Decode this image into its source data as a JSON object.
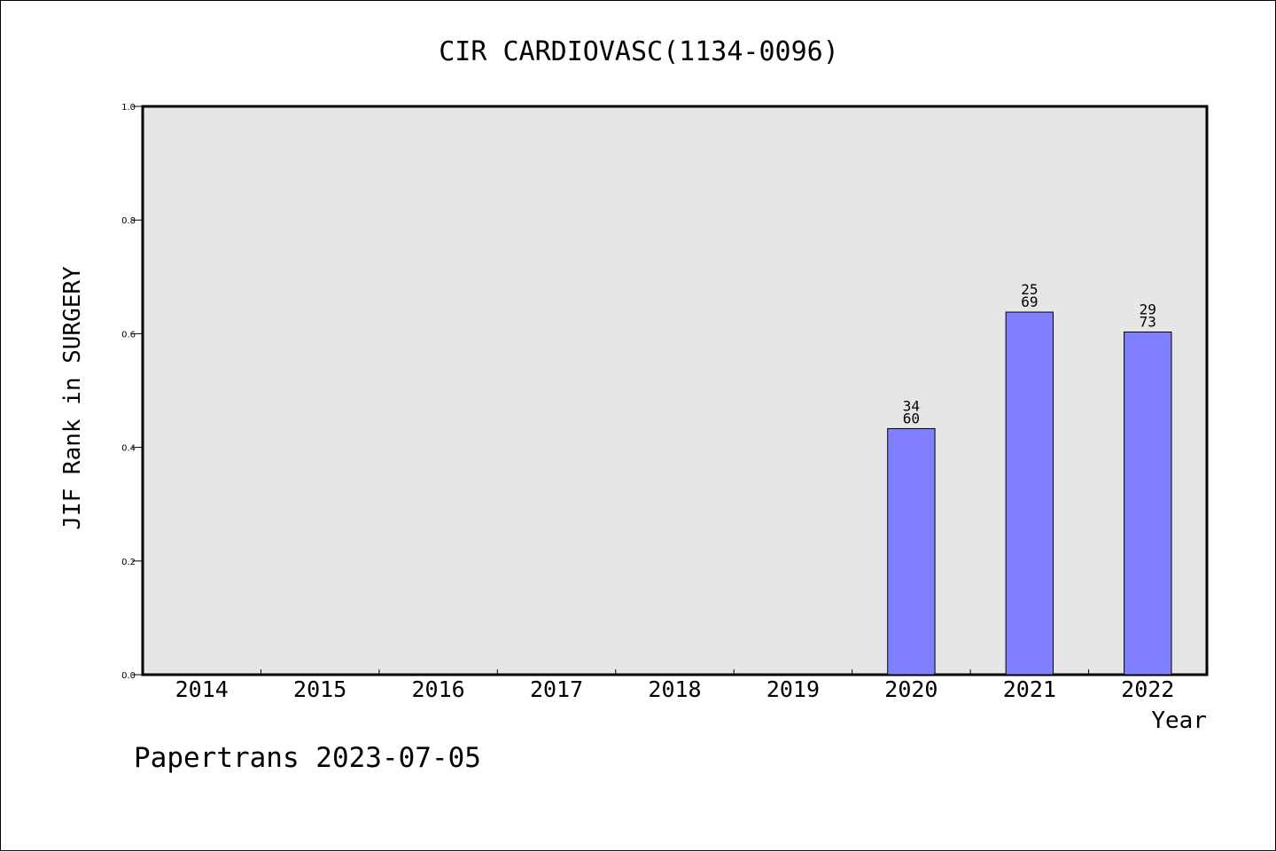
{
  "chart_data": {
    "type": "bar",
    "title": "CIR CARDIOVASC(1134-0096)",
    "xlabel": "Year",
    "ylabel": "JIF Rank in SURGERY",
    "categories": [
      "2014",
      "2015",
      "2016",
      "2017",
      "2018",
      "2019",
      "2020",
      "2021",
      "2022"
    ],
    "values": [
      null,
      null,
      null,
      null,
      null,
      null,
      0.433,
      0.638,
      0.603
    ],
    "bar_labels": [
      null,
      null,
      null,
      null,
      null,
      null,
      {
        "top": "34",
        "bottom": "60"
      },
      {
        "top": "25",
        "bottom": "69"
      },
      {
        "top": "29",
        "bottom": "73"
      }
    ],
    "ylim": [
      0.0,
      1.0
    ],
    "yticks": [
      "0.0",
      "0.2",
      "0.4",
      "0.6",
      "0.8",
      "1.0"
    ],
    "grid": false,
    "colors": {
      "plot_background": "#e6e6e6",
      "bar_fill": "#8080ff",
      "bar_edge": "#000000"
    }
  },
  "footer": {
    "watermark": "Papertrans 2023-07-05"
  }
}
